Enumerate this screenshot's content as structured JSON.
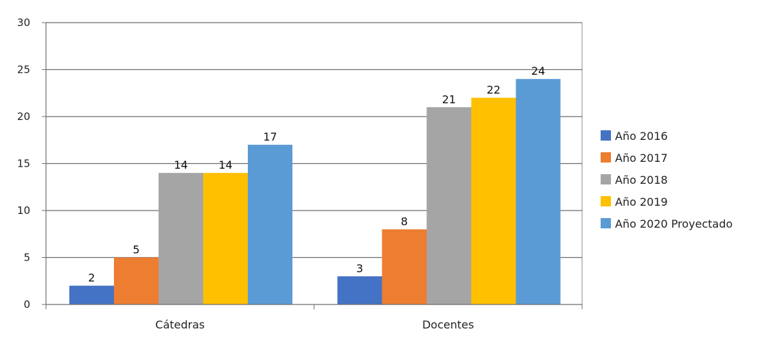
{
  "chart_data": {
    "type": "bar",
    "categories": [
      "Cátedras",
      "Docentes"
    ],
    "series": [
      {
        "name": "Año 2016",
        "values": [
          2,
          3
        ],
        "color": "#4472c4"
      },
      {
        "name": "Año 2017",
        "values": [
          5,
          8
        ],
        "color": "#ed7d31"
      },
      {
        "name": "Año 2018",
        "values": [
          14,
          21
        ],
        "color": "#a5a5a5"
      },
      {
        "name": "Año 2019",
        "values": [
          14,
          22
        ],
        "color": "#ffc000"
      },
      {
        "name": "Año 2020 Proyectado",
        "values": [
          17,
          24
        ],
        "color": "#5b9bd5"
      }
    ],
    "ylim": [
      0,
      30
    ],
    "yticks": [
      0,
      5,
      10,
      15,
      20,
      25,
      30
    ],
    "grid": true,
    "data_labels": true,
    "legend_position": "right"
  }
}
